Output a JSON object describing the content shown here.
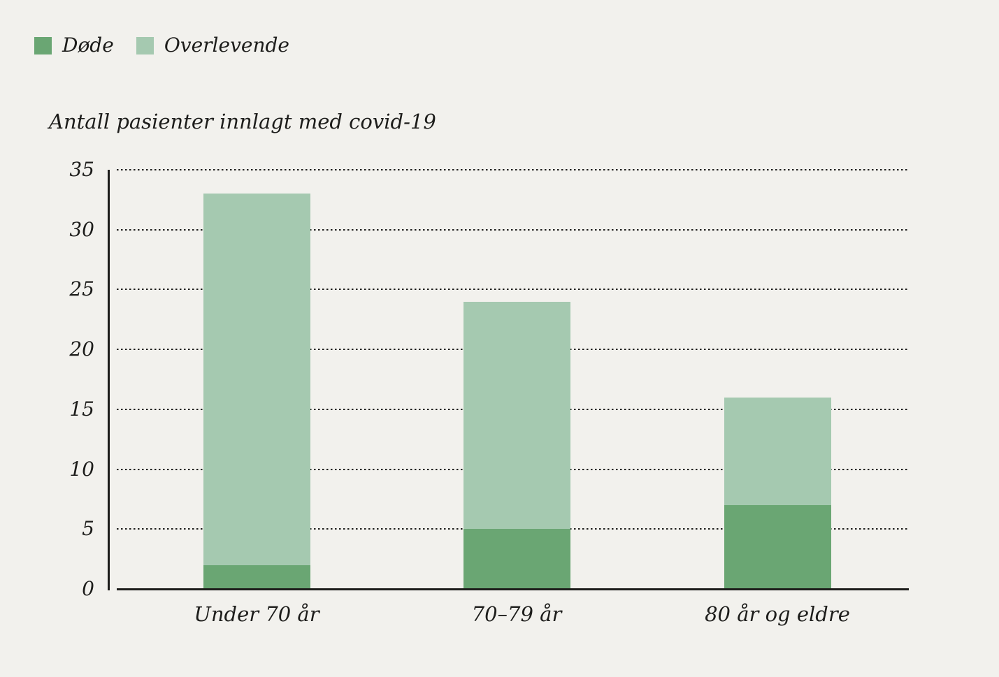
{
  "page": {
    "background": "#f2f1ed",
    "text_color": "#1d1d1b"
  },
  "legend": {
    "items": [
      {
        "label": "Døde",
        "color": "#6aa673",
        "swatch_icon": "square-swatch"
      },
      {
        "label": "Overlevende",
        "color": "#a5c9b0",
        "swatch_icon": "square-swatch"
      }
    ]
  },
  "chart_data": {
    "type": "bar",
    "stacked": true,
    "title": "Antall pasienter innlagt med covid-19",
    "xlabel": "",
    "ylabel": "Antall pasienter innlagt med covid-19",
    "categories": [
      "Under 70 år",
      "70–79 år",
      "80 år og eldre"
    ],
    "series": [
      {
        "name": "Døde",
        "color": "#6aa673",
        "values": [
          2,
          5,
          7
        ]
      },
      {
        "name": "Overlevende",
        "color": "#a5c9b0",
        "values": [
          31,
          19,
          9
        ]
      }
    ],
    "totals": [
      33,
      24,
      16
    ],
    "ylim": [
      0,
      35
    ],
    "yticks": [
      0,
      5,
      10,
      15,
      20,
      25,
      30,
      35
    ],
    "grid": "horizontal-dotted",
    "legend_position": "top-left",
    "axis_color": "#1d1d1b"
  }
}
